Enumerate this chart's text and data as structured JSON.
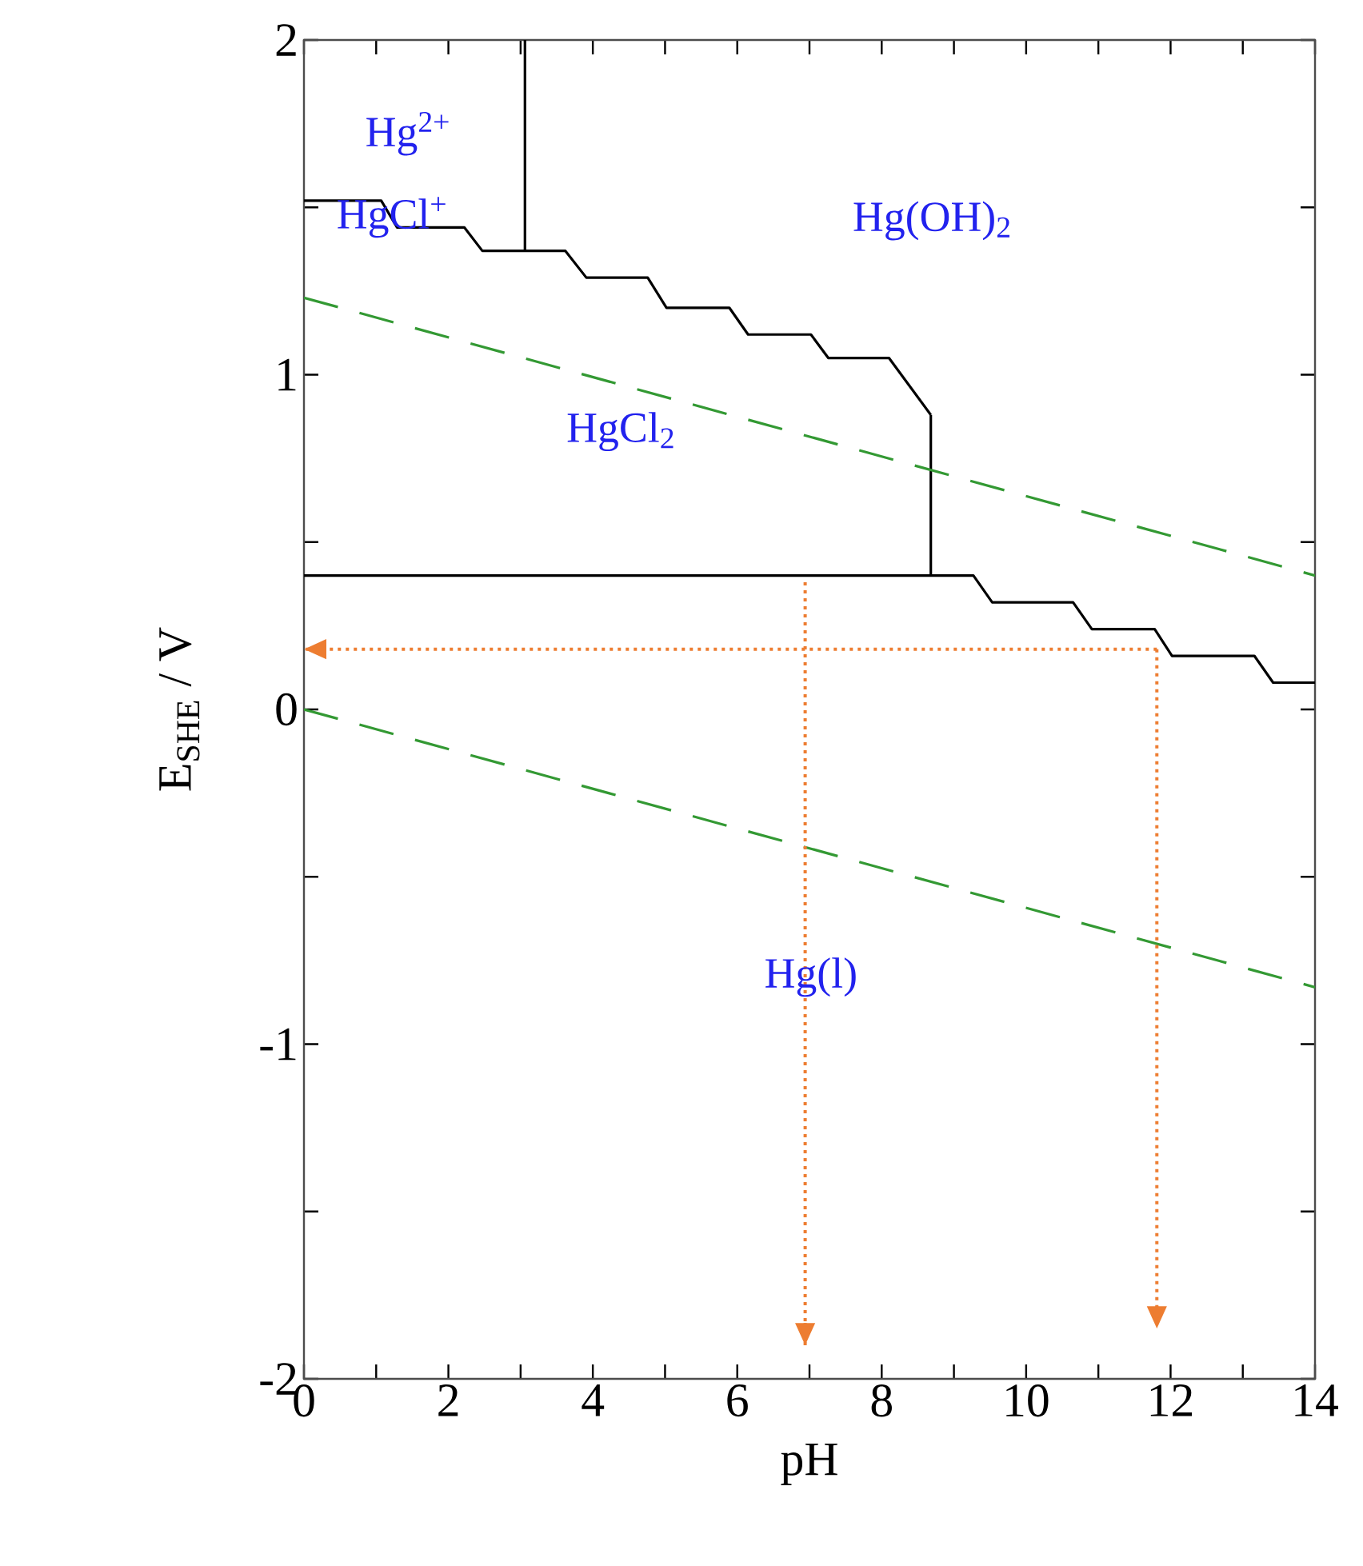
{
  "chart_data": {
    "type": "line",
    "xlabel": "pH",
    "ylabel": "E$_{SHE}$ / V",
    "xlim": [
      0,
      14
    ],
    "ylim": [
      -2,
      2
    ],
    "xticks": [
      0,
      {
        "value": 1,
        "label": null
      },
      2,
      {
        "value": 3,
        "label": null
      },
      4,
      {
        "value": 5,
        "label": null
      },
      6,
      {
        "value": 7,
        "label": null
      },
      8,
      {
        "value": 9,
        "label": null
      },
      10,
      {
        "value": 11,
        "label": null
      },
      12,
      {
        "value": 13,
        "label": null
      },
      14
    ],
    "yticks": [
      -2,
      {
        "value": -1.5,
        "label": null
      },
      -1,
      {
        "value": -0.5,
        "label": null
      },
      0,
      {
        "value": 0.5,
        "label": null
      },
      1,
      {
        "value": 1.5,
        "label": null
      },
      2
    ],
    "grid": false,
    "marker": "none",
    "series": [
      {
        "color": "#000000",
        "line_style": "solid",
        "x": [
          0,
          1.07,
          1.29,
          2.22,
          2.47,
          3.62,
          3.91,
          4.76,
          5.02,
          5.89,
          6.15,
          7.02,
          7.26,
          8.1,
          8.68
        ],
        "values": [
          1.52,
          1.52,
          1.44,
          1.44,
          1.37,
          1.37,
          1.29,
          1.29,
          1.2,
          1.2,
          1.12,
          1.12,
          1.05,
          1.05,
          0.88
        ]
      },
      {
        "color": "#000000",
        "line_style": "solid",
        "x": [
          3.06,
          3.06
        ],
        "values": [
          2,
          1.37
        ]
      },
      {
        "color": "#000000",
        "line_style": "solid",
        "x": [
          8.68,
          8.68
        ],
        "values": [
          0.88,
          0.4
        ]
      },
      {
        "color": "#000000",
        "line_style": "solid",
        "x": [
          0,
          9.27,
          9.53,
          10.65,
          10.91,
          11.78,
          12.02,
          13.16,
          13.42,
          14
        ],
        "values": [
          0.4,
          0.4,
          0.32,
          0.32,
          0.24,
          0.24,
          0.16,
          0.16,
          0.08,
          0.08
        ]
      },
      {
        "color": "#339933",
        "line_style": "dashed",
        "x": [
          0,
          14
        ],
        "values": [
          1.23,
          0.4
        ]
      },
      {
        "color": "#339933",
        "line_style": "dashed",
        "x": [
          0,
          14
        ],
        "values": [
          0,
          -0.83
        ]
      },
      {
        "color": "#ed7d31",
        "line_style": "dotted",
        "x": [
          11.81,
          0
        ],
        "values": [
          0.18,
          0.18
        ]
      },
      {
        "color": "#ed7d31",
        "line_style": "dotted",
        "x": [
          6.94,
          6.94
        ],
        "values": [
          0.38,
          -1.9
        ]
      },
      {
        "color": "#ed7d31",
        "line_style": "dotted",
        "x": [
          11.81,
          11.81
        ],
        "values": [
          0.18,
          -1.85
        ]
      }
    ],
    "annotations": [
      "Hg$^{2+}$",
      "HgCl$^{+}$",
      "Hg(OH)$_{2}$",
      "HgCl$_{2}$",
      "Hg(l)"
    ]
  }
}
